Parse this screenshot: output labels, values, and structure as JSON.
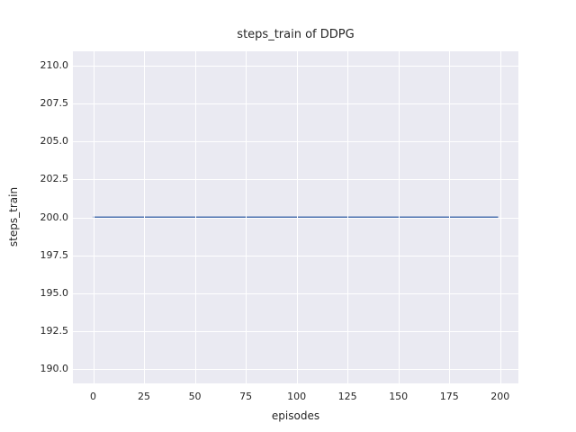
{
  "figure": {
    "background": "#ffffff"
  },
  "chart_data": {
    "type": "line",
    "title": "steps_train of DDPG",
    "xlabel": "episodes",
    "ylabel": "steps_train",
    "x_ticks": [
      0,
      25,
      50,
      75,
      100,
      125,
      150,
      175,
      200
    ],
    "y_ticks": [
      210.0,
      207.5,
      205.0,
      202.5,
      200.0,
      197.5,
      195.0,
      192.5,
      190.0
    ],
    "y_tick_decimals": 1,
    "xlim": [
      -9.95,
      208.95
    ],
    "ylim": [
      189.05,
      210.95
    ],
    "grid": true,
    "legend_position": "none",
    "plot_background": "#eaeaf2",
    "grid_color": "#ffffff",
    "text_color": "#262626",
    "series": [
      {
        "name": "steps_train",
        "color": "#4c72b0",
        "line_width": 2,
        "x": [
          0,
          199
        ],
        "y": [
          200,
          200
        ]
      }
    ]
  }
}
